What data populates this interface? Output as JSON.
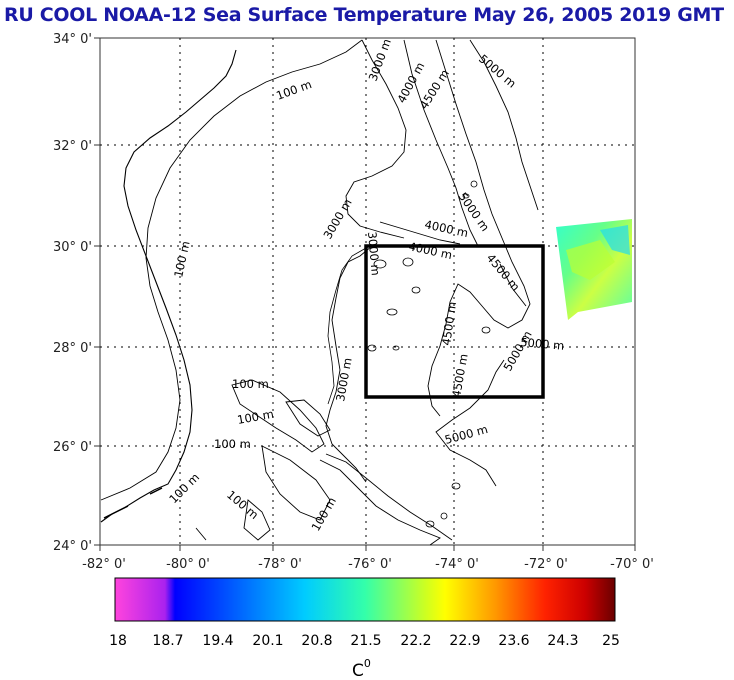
{
  "title": "RU COOL  NOAA-12 Sea Surface Temperature May 26, 2005 2019 GMT",
  "map": {
    "lon_range": [
      -82,
      -70
    ],
    "lat_range": [
      24,
      34
    ],
    "lat_ticks": [
      "24° 0'",
      "26° 0'",
      "28° 0'",
      "30° 0'",
      "32° 0'",
      "34° 0'"
    ],
    "lon_ticks": [
      "-82° 0'",
      "-80° 0'",
      "-78° 0'",
      "-76° 0'",
      "-74° 0'",
      "-72° 0'",
      "-70° 0'"
    ],
    "study_box": {
      "lon_min": -76,
      "lon_max": -72,
      "lat_min": 27,
      "lat_max": 30
    },
    "contour_labels": [
      "100 m",
      "3000 m",
      "4000 m",
      "4500 m",
      "5000 m",
      "100 m",
      "3000 m",
      "4000 m",
      "5000 m",
      "4000 m",
      "4500 m",
      "5000 m",
      "100 m",
      "100 m",
      "100 m",
      "100 m",
      "100 m",
      "100 m",
      "4500 m",
      "4500 m",
      "5000 m",
      "5000 m",
      "3000 m",
      "3000 m"
    ]
  },
  "colorbar": {
    "ticks": [
      "18",
      "18.7",
      "19.4",
      "20.1",
      "20.8",
      "21.5",
      "22.2",
      "22.9",
      "23.6",
      "24.3",
      "25"
    ],
    "unit": "C",
    "unit_superscript": "0",
    "stops": [
      "#ff44dd",
      "#aa22ee",
      "#0000ff",
      "#0066ff",
      "#00bbff",
      "#00ffcc",
      "#66ff66",
      "#ffff00",
      "#ffaa00",
      "#ff3300",
      "#cc0000",
      "#800000"
    ]
  }
}
